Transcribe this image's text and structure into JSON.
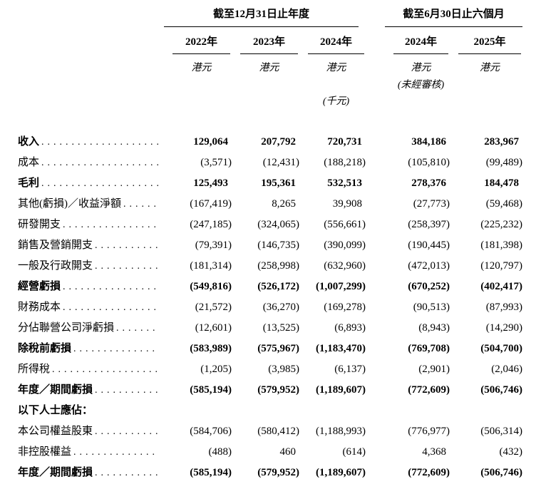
{
  "page": {
    "background": "#ffffff",
    "text_color": "#000000"
  },
  "table": {
    "groups": [
      {
        "label": "截至12月31日止年度",
        "span": 3
      },
      {
        "label": "截至6月30日止六個月",
        "span": 2
      }
    ],
    "columns": [
      {
        "year": "2022年",
        "currency": "港元",
        "audit_note": "",
        "unit_note": ""
      },
      {
        "year": "2023年",
        "currency": "港元",
        "audit_note": "",
        "unit_note": ""
      },
      {
        "year": "2024年",
        "currency": "港元",
        "audit_note": "",
        "unit_note": "(千元)"
      },
      {
        "year": "2024年",
        "currency": "港元",
        "audit_note": "(未經審核)",
        "unit_note": ""
      },
      {
        "year": "2025年",
        "currency": "港元",
        "audit_note": "",
        "unit_note": ""
      }
    ],
    "rows": [
      {
        "label": "收入",
        "bold": true,
        "leader": true,
        "section": false,
        "values": [
          "129,064",
          "207,792",
          "720,731",
          "384,186",
          "283,967"
        ]
      },
      {
        "label": "成本",
        "bold": false,
        "leader": true,
        "section": false,
        "values": [
          "(3,571)",
          "(12,431)",
          "(188,218)",
          "(105,810)",
          "(99,489)"
        ]
      },
      {
        "label": "毛利",
        "bold": true,
        "leader": true,
        "section": false,
        "values": [
          "125,493",
          "195,361",
          "532,513",
          "278,376",
          "184,478"
        ]
      },
      {
        "label": "其他(虧損)／收益淨額",
        "bold": false,
        "leader": true,
        "section": false,
        "values": [
          "(167,419)",
          "8,265",
          "39,908",
          "(27,773)",
          "(59,468)"
        ]
      },
      {
        "label": "研發開支",
        "bold": false,
        "leader": true,
        "section": false,
        "values": [
          "(247,185)",
          "(324,065)",
          "(556,661)",
          "(258,397)",
          "(225,232)"
        ]
      },
      {
        "label": "銷售及營銷開支",
        "bold": false,
        "leader": true,
        "section": false,
        "values": [
          "(79,391)",
          "(146,735)",
          "(390,099)",
          "(190,445)",
          "(181,398)"
        ]
      },
      {
        "label": "一般及行政開支",
        "bold": false,
        "leader": true,
        "section": false,
        "values": [
          "(181,314)",
          "(258,998)",
          "(632,960)",
          "(472,013)",
          "(120,797)"
        ]
      },
      {
        "label": "經營虧損",
        "bold": true,
        "leader": true,
        "section": false,
        "values": [
          "(549,816)",
          "(526,172)",
          "(1,007,299)",
          "(670,252)",
          "(402,417)"
        ]
      },
      {
        "label": "財務成本",
        "bold": false,
        "leader": true,
        "section": false,
        "values": [
          "(21,572)",
          "(36,270)",
          "(169,278)",
          "(90,513)",
          "(87,993)"
        ]
      },
      {
        "label": "分佔聯營公司淨虧損",
        "bold": false,
        "leader": true,
        "section": false,
        "values": [
          "(12,601)",
          "(13,525)",
          "(6,893)",
          "(8,943)",
          "(14,290)"
        ]
      },
      {
        "label": "除稅前虧損",
        "bold": true,
        "leader": true,
        "section": false,
        "values": [
          "(583,989)",
          "(575,967)",
          "(1,183,470)",
          "(769,708)",
          "(504,700)"
        ]
      },
      {
        "label": "所得稅",
        "bold": false,
        "leader": true,
        "section": false,
        "values": [
          "(1,205)",
          "(3,985)",
          "(6,137)",
          "(2,901)",
          "(2,046)"
        ]
      },
      {
        "label": "年度／期間虧損",
        "bold": true,
        "leader": true,
        "section": false,
        "values": [
          "(585,194)",
          "(579,952)",
          "(1,189,607)",
          "(772,609)",
          "(506,746)"
        ]
      },
      {
        "label": "以下人士應佔：",
        "bold": true,
        "leader": false,
        "section": true,
        "values": [
          "",
          "",
          "",
          "",
          ""
        ]
      },
      {
        "label": "本公司權益股東",
        "bold": false,
        "leader": true,
        "section": false,
        "values": [
          "(584,706)",
          "(580,412)",
          "(1,188,993)",
          "(776,977)",
          "(506,314)"
        ]
      },
      {
        "label": "非控股權益",
        "bold": false,
        "leader": true,
        "section": false,
        "values": [
          "(488)",
          "460",
          "(614)",
          "4,368",
          "(432)"
        ]
      },
      {
        "label": "年度／期間虧損",
        "bold": true,
        "leader": true,
        "section": false,
        "values": [
          "(585,194)",
          "(579,952)",
          "(1,189,607)",
          "(772,609)",
          "(506,746)"
        ]
      }
    ]
  }
}
